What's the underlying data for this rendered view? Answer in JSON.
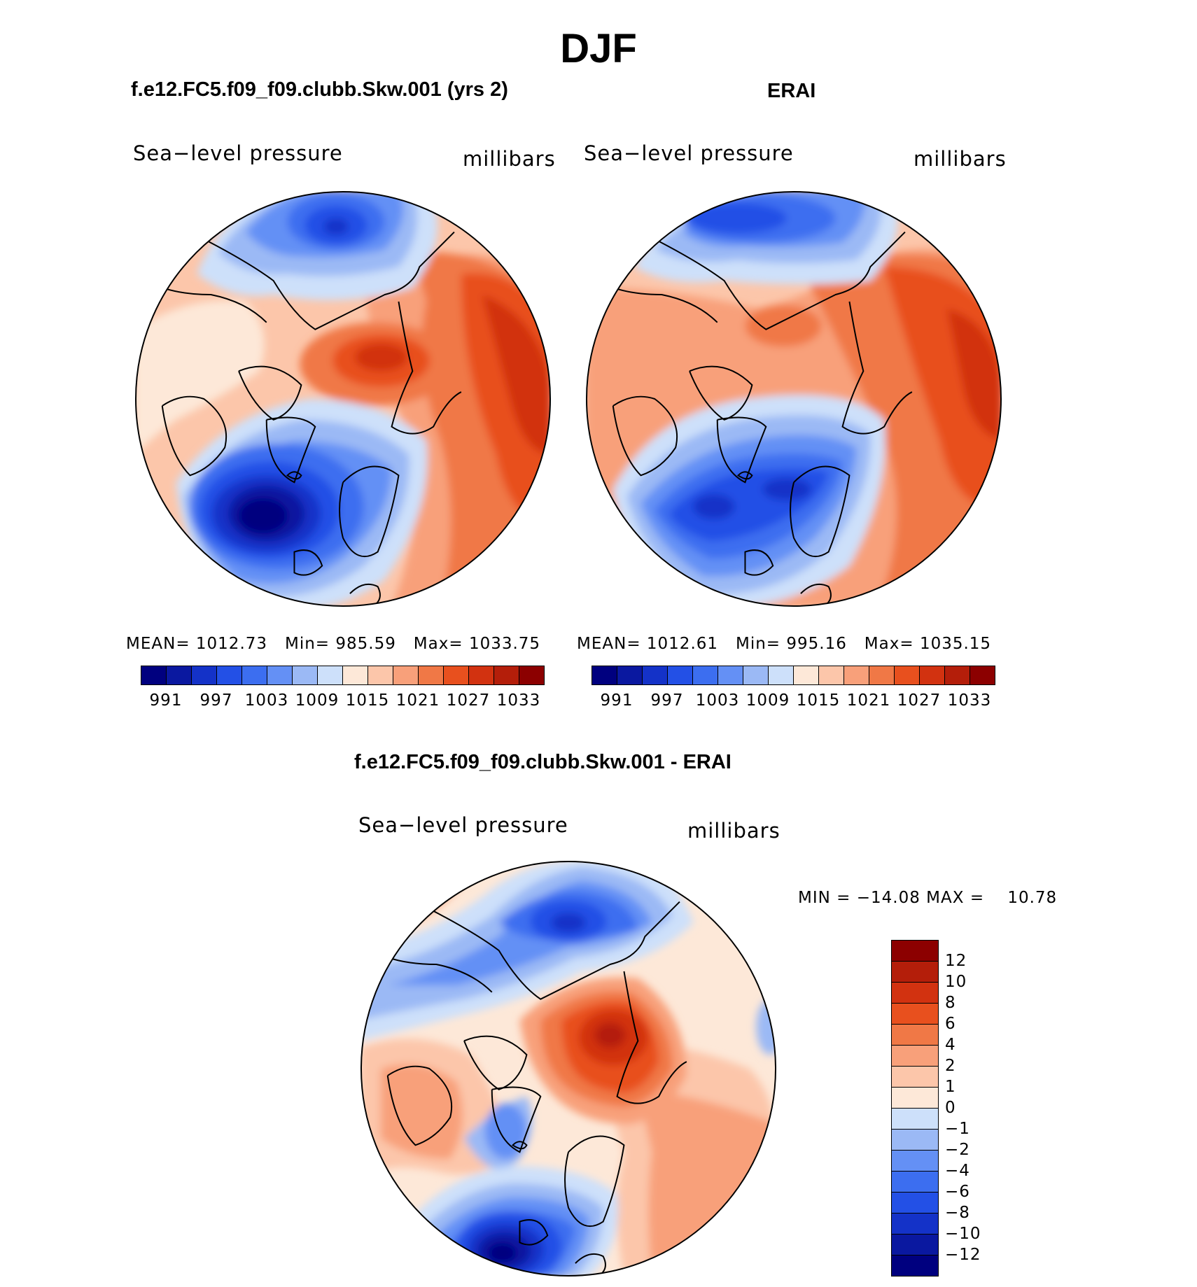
{
  "figure": {
    "title": "DJF"
  },
  "panels": [
    {
      "title": "f.e12.FC5.f09_f09.clubb.Skw.001 (yrs 2)",
      "variable": "Sea−level pressure",
      "units": "millibars",
      "stats": {
        "mean_label": "MEAN=",
        "mean": "1012.73",
        "min_label": "Min=",
        "min": "985.59",
        "max_label": "Max=",
        "max": "1033.75"
      }
    },
    {
      "title": "ERAI",
      "variable": "Sea−level pressure",
      "units": "millibars",
      "stats": {
        "mean_label": "MEAN=",
        "mean": "1012.61",
        "min_label": "Min=",
        "min": "995.16",
        "max_label": "Max=",
        "max": "1035.15"
      }
    },
    {
      "title": "f.e12.FC5.f09_f09.clubb.Skw.001 - ERAI",
      "variable": "Sea−level pressure",
      "units": "millibars",
      "stats": {
        "min_label": "MIN =",
        "min": "−14.08",
        "max_label": "MAX =",
        "max": "10.78"
      }
    }
  ],
  "colorbars": {
    "absolute": {
      "colors": [
        "#00007f",
        "#0a18a0",
        "#1432c8",
        "#2350e6",
        "#3c6ef0",
        "#6490f5",
        "#9bb9f5",
        "#cde0fa",
        "#fde8d8",
        "#fcc6aa",
        "#f8a07a",
        "#f07846",
        "#e8501e",
        "#d23210",
        "#b41e0a",
        "#8c0000"
      ],
      "tick_labels": [
        "991",
        "997",
        "1003",
        "1009",
        "1015",
        "1021",
        "1027",
        "1033"
      ]
    },
    "difference": {
      "colors_top_to_bottom": [
        "#8c0000",
        "#b41e0a",
        "#d23210",
        "#e8501e",
        "#f07846",
        "#f8a07a",
        "#fcc6aa",
        "#fde8d8",
        "#cde0fa",
        "#9bb9f5",
        "#6490f5",
        "#3c6ef0",
        "#2350e6",
        "#1432c8",
        "#0a18a0",
        "#00007f"
      ],
      "tick_labels": [
        "12",
        "10",
        "8",
        "6",
        "4",
        "2",
        "1",
        "0",
        "−1",
        "−2",
        "−4",
        "−6",
        "−8",
        "−10",
        "−12"
      ]
    }
  },
  "chart_data": {
    "type": "heatmap",
    "projection": "north polar stereographic",
    "season": "DJF",
    "field": "Sea-level pressure (millibars)",
    "maps": [
      {
        "name": "f.e12.FC5.f09_f09.clubb.Skw.001 (yrs 2)",
        "mean": 1012.73,
        "min": 985.59,
        "max": 1033.75,
        "contour_levels": [
          991,
          994,
          997,
          1000,
          1003,
          1006,
          1009,
          1012,
          1015,
          1018,
          1021,
          1024,
          1027,
          1030,
          1033
        ]
      },
      {
        "name": "ERAI",
        "mean": 1012.61,
        "min": 995.16,
        "max": 1035.15,
        "contour_levels": [
          991,
          994,
          997,
          1000,
          1003,
          1006,
          1009,
          1012,
          1015,
          1018,
          1021,
          1024,
          1027,
          1030,
          1033
        ]
      },
      {
        "name": "f.e12.FC5.f09_f09.clubb.Skw.001 - ERAI",
        "min": -14.08,
        "max": 10.78,
        "contour_levels": [
          -12,
          -10,
          -8,
          -6,
          -4,
          -2,
          -1,
          0,
          1,
          2,
          4,
          6,
          8,
          10,
          12
        ]
      }
    ]
  }
}
